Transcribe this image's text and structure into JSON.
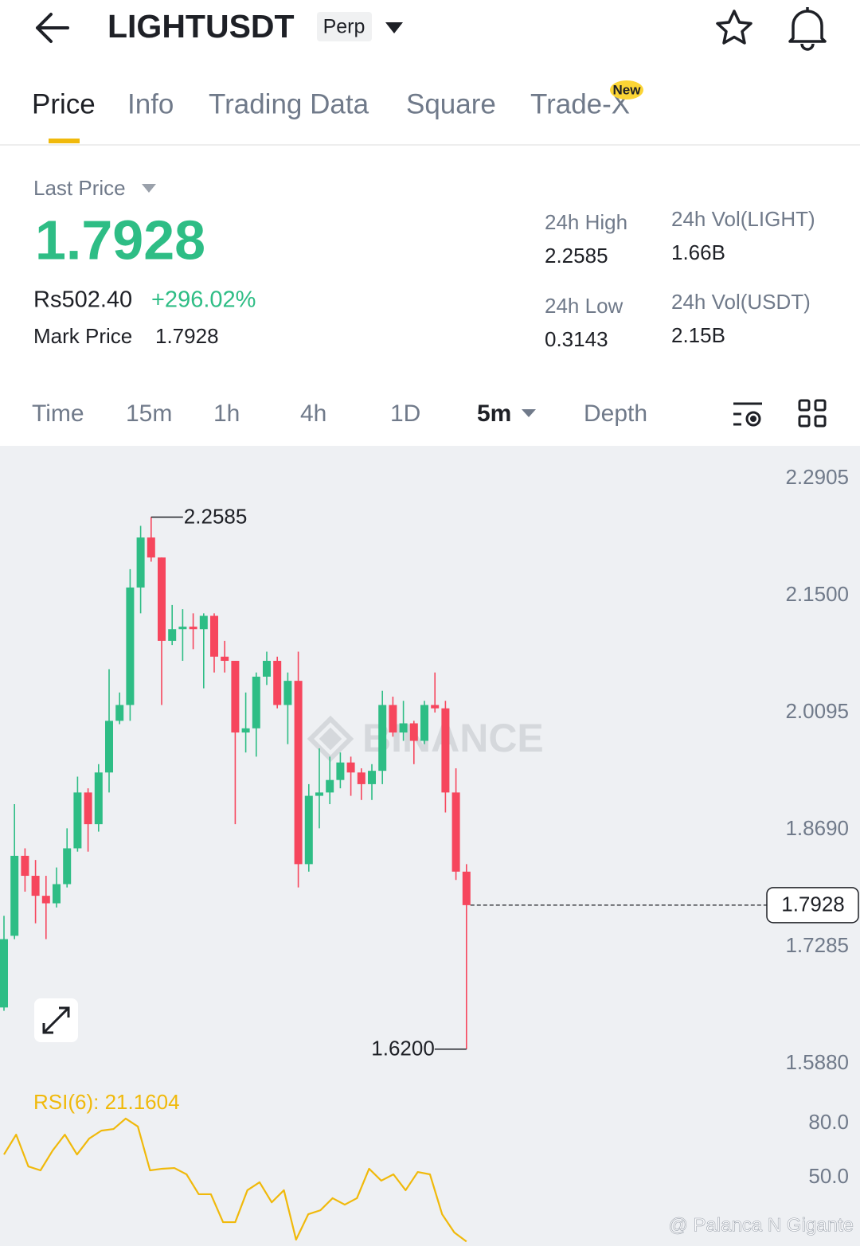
{
  "header": {
    "symbol": "LIGHTUSDT",
    "badge": "Perp"
  },
  "tabs": [
    "Price",
    "Info",
    "Trading Data",
    "Square",
    "Trade-X"
  ],
  "tab_badge": "New",
  "price": {
    "label": "Last Price",
    "value": "1.7928",
    "fiat": "Rs502.40",
    "change": "+296.02%",
    "mark_label": "Mark Price",
    "mark_value": "1.7928"
  },
  "stats": [
    {
      "label": "24h High",
      "value": "2.2585"
    },
    {
      "label": "24h Low",
      "value": "0.3143"
    },
    {
      "label": "24h Vol(LIGHT)",
      "value": "1.66B"
    },
    {
      "label": "24h Vol(USDT)",
      "value": "2.15B"
    }
  ],
  "intervals": [
    "Time",
    "15m",
    "1h",
    "4h",
    "1D",
    "5m",
    "Depth"
  ],
  "chart_data": {
    "type": "candlestick",
    "watermark": "BINANCE",
    "up_color": "#2ebd85",
    "down_color": "#f6465d",
    "open": [
      1.67,
      1.756,
      1.852,
      1.828,
      1.804,
      1.795,
      1.818,
      1.861,
      1.928,
      1.89,
      1.952,
      2.014,
      2.033,
      2.174,
      2.234,
      2.21,
      2.11,
      2.124,
      2.127,
      2.124,
      2.14,
      2.091,
      2.086,
      2.0,
      2.005,
      2.067,
      2.086,
      2.033,
      2.062,
      1.842,
      1.924,
      1.928,
      1.943,
      1.964,
      1.952,
      1.938,
      1.954,
      2.033,
      2.0,
      2.011,
      1.99,
      2.033,
      2.029,
      1.928,
      1.833
    ],
    "high": [
      1.78,
      1.914,
      1.861,
      1.847,
      1.828,
      1.838,
      1.885,
      1.947,
      1.933,
      1.962,
      2.076,
      2.048,
      2.196,
      2.248,
      2.2585,
      2.21,
      2.153,
      2.148,
      2.143,
      2.143,
      2.143,
      2.11,
      2.086,
      2.048,
      2.072,
      2.097,
      2.091,
      2.072,
      2.097,
      1.938,
      1.981,
      1.971,
      1.976,
      1.971,
      1.957,
      1.962,
      2.05,
      2.043,
      2.038,
      2.014,
      2.038,
      2.072,
      2.038,
      1.957,
      1.842
    ],
    "low": [
      1.666,
      1.752,
      1.809,
      1.771,
      1.752,
      1.79,
      1.814,
      1.857,
      1.857,
      1.881,
      1.928,
      2.01,
      2.014,
      2.143,
      2.205,
      2.033,
      2.105,
      2.086,
      2.1,
      2.053,
      2.072,
      2.072,
      1.89,
      1.976,
      1.971,
      2.057,
      2.029,
      1.986,
      1.814,
      1.833,
      1.885,
      1.914,
      1.933,
      1.924,
      1.919,
      1.919,
      1.938,
      1.995,
      1.99,
      1.962,
      1.986,
      2.024,
      1.904,
      1.823,
      1.62
    ],
    "close": [
      1.752,
      1.852,
      1.828,
      1.804,
      1.795,
      1.818,
      1.861,
      1.928,
      1.89,
      1.952,
      2.014,
      2.033,
      2.174,
      2.234,
      2.21,
      2.11,
      2.124,
      2.127,
      2.124,
      2.14,
      2.091,
      2.086,
      2.0,
      2.005,
      2.067,
      2.086,
      2.033,
      2.062,
      1.842,
      1.924,
      1.928,
      1.943,
      1.964,
      1.952,
      1.938,
      1.954,
      2.033,
      2.0,
      2.011,
      1.99,
      2.033,
      2.029,
      1.928,
      1.833,
      1.7928
    ],
    "ylim": [
      1.5796,
      2.344
    ],
    "yticks": [
      2.2905,
      {
        "value": 2.15,
        "label": "2.1500"
      },
      2.0095,
      {
        "value": 1.869,
        "label": "1.8690"
      },
      1.7285,
      {
        "value": 1.588,
        "label": "1.5880"
      }
    ],
    "high_label": "2.2585",
    "low_label": "1.6200",
    "last_label": "1.7928"
  },
  "rsi": {
    "label": "RSI(6): 21.1604",
    "color": "#f0b90b",
    "values": [
      69.4,
      80.4,
      62.8,
      60.6,
      71.6,
      80.4,
      69.4,
      78.2,
      82.6,
      83.5,
      89.3,
      84.9,
      60.6,
      61.5,
      61.9,
      58.4,
      47.4,
      47.4,
      31.9,
      31.9,
      49.6,
      54.0,
      42.9,
      49.6,
      22.2,
      36.3,
      38.5,
      45.2,
      41.6,
      45.2,
      61.5,
      54.9,
      58.4,
      49.6,
      59.7,
      58.4,
      36.3,
      26.2,
      21.1604
    ],
    "ylim": [
      18.7,
      100.3
    ],
    "yticks": [
      {
        "value": 80,
        "label": "80.0"
      },
      {
        "value": 50,
        "label": "50.0"
      }
    ]
  },
  "credit": "@ Palanca N Gigante"
}
